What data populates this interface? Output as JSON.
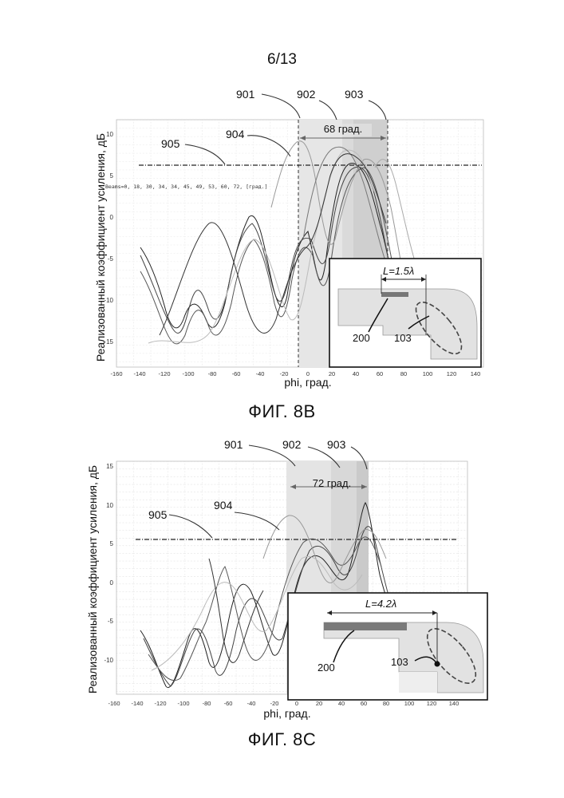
{
  "page_number": "6/13",
  "figures": [
    {
      "caption": "ФИГ. 8В",
      "ylabel": "Реализованный коэффициент усиления, дБ",
      "xlabel": "phi, град.",
      "span_label": "68 град.",
      "beams_text": "Beams=0, 18, 30, 34, 34, 45, 49, 53, 60, 72, [град.]",
      "callouts": [
        "901",
        "902",
        "903",
        "904",
        "905"
      ],
      "inset": {
        "length_label": "L=1.5λ",
        "ref_a": "200",
        "ref_b": "103"
      }
    },
    {
      "caption": "ФИГ. 8С",
      "ylabel": "Реализованный коэффициент усиления, дБ",
      "xlabel": "phi, град.",
      "span_label": "72 град.",
      "callouts": [
        "901",
        "902",
        "903",
        "904",
        "905"
      ],
      "inset": {
        "length_label": "L=4.2λ",
        "ref_a": "200",
        "ref_b": "103"
      }
    }
  ],
  "chart_data": [
    {
      "type": "line",
      "xlabel": "phi, град.",
      "ylabel": "Реализованный коэффициент усиления, дБ",
      "xlim": [
        -160,
        150
      ],
      "ylim": [
        -18,
        12
      ],
      "x_ticks": [
        -160,
        -140,
        -120,
        -100,
        -80,
        -60,
        -40,
        -20,
        0,
        20,
        40,
        60,
        80,
        100,
        120,
        140
      ],
      "y_ticks": [
        10,
        5,
        0,
        -5,
        -10,
        -15
      ],
      "threshold_line": 6,
      "shaded_regions": [
        [
          -5,
          67
        ],
        [
          28,
          67
        ],
        [
          40,
          67
        ]
      ],
      "grid": true
    },
    {
      "type": "line",
      "xlabel": "phi, град.",
      "ylabel": "Реализованный коэффициент усиления, дБ",
      "xlim": [
        -160,
        150
      ],
      "ylim": [
        -14,
        16
      ],
      "x_ticks": [
        -160,
        -140,
        -120,
        -100,
        -80,
        -60,
        -40,
        -20,
        0,
        20,
        40,
        60,
        80,
        100,
        120,
        140
      ],
      "y_ticks": [
        15,
        10,
        5,
        0,
        -5,
        -10
      ],
      "threshold_line": 5.5,
      "shaded_regions": [
        [
          -10,
          62
        ],
        [
          28,
          62
        ],
        [
          50,
          62
        ]
      ],
      "grid": true
    }
  ]
}
